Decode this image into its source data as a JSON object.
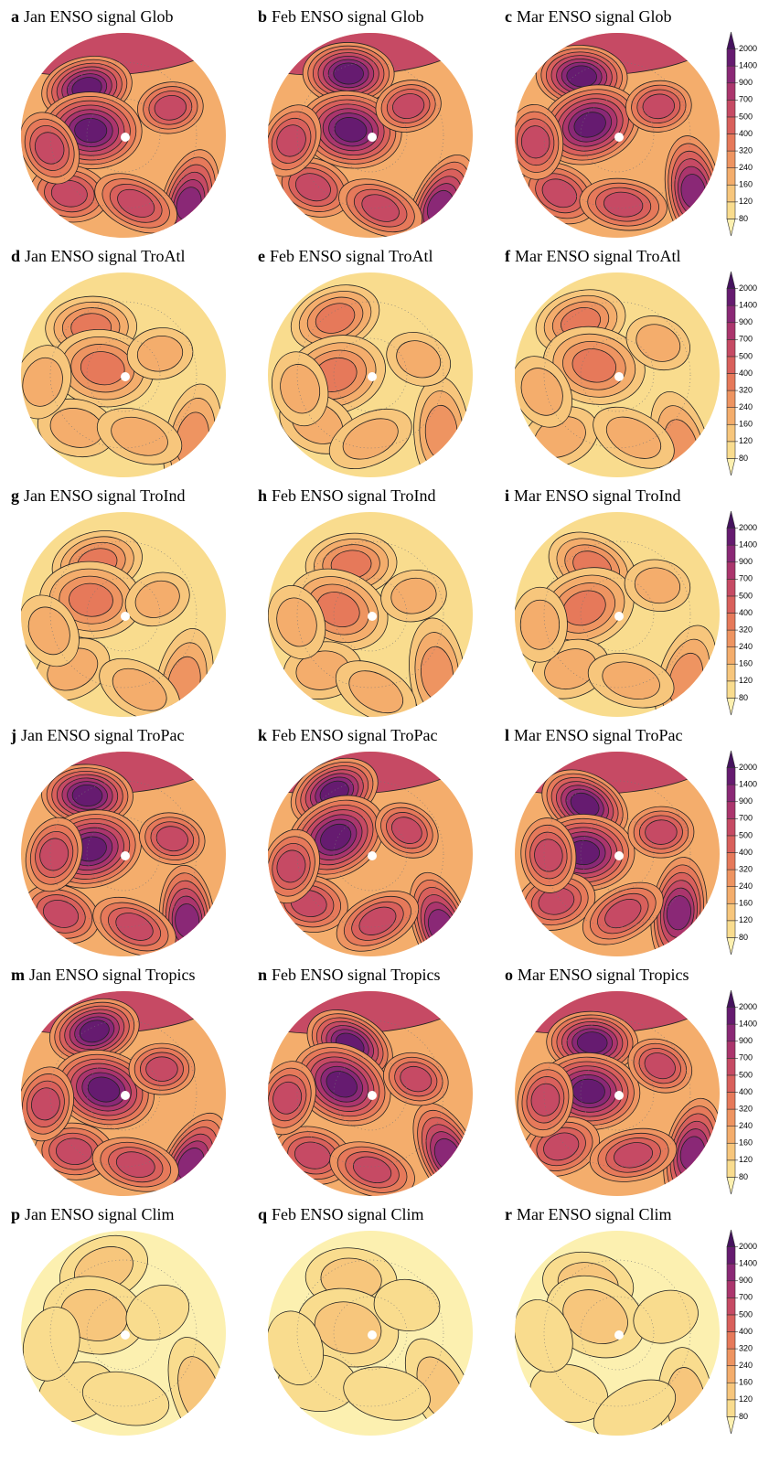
{
  "panels": [
    {
      "letter": "a",
      "title": "Jan ENSO signal Glob"
    },
    {
      "letter": "b",
      "title": "Feb ENSO signal Glob"
    },
    {
      "letter": "c",
      "title": "Mar ENSO signal Glob"
    },
    {
      "letter": "d",
      "title": "Jan ENSO signal TroAtl"
    },
    {
      "letter": "e",
      "title": "Feb ENSO signal TroAtl"
    },
    {
      "letter": "f",
      "title": "Mar ENSO signal TroAtl"
    },
    {
      "letter": "g",
      "title": "Jan ENSO signal TroInd"
    },
    {
      "letter": "h",
      "title": "Feb ENSO signal TroInd"
    },
    {
      "letter": "i",
      "title": "Mar ENSO signal TroInd"
    },
    {
      "letter": "j",
      "title": "Jan ENSO signal TroPac"
    },
    {
      "letter": "k",
      "title": "Feb ENSO signal TroPac"
    },
    {
      "letter": "l",
      "title": "Mar ENSO signal TroPac"
    },
    {
      "letter": "m",
      "title": "Jan ENSO signal Tropics"
    },
    {
      "letter": "n",
      "title": "Feb ENSO signal Tropics"
    },
    {
      "letter": "o",
      "title": "Mar ENSO signal Tropics"
    },
    {
      "letter": "p",
      "title": "Jan ENSO signal Clim"
    },
    {
      "letter": "q",
      "title": "Feb ENSO signal Clim"
    },
    {
      "letter": "r",
      "title": "Mar ENSO signal Clim"
    }
  ],
  "colorbar": {
    "ticks": [
      80,
      120,
      160,
      240,
      320,
      400,
      500,
      700,
      900,
      1400,
      2000
    ],
    "colors": [
      "#fcf0b0",
      "#f9dc8e",
      "#f7c67c",
      "#f4ad6c",
      "#ee9461",
      "#e6795a",
      "#d9605c",
      "#c64a64",
      "#ab356d",
      "#8a2876",
      "#661b70",
      "#45135e"
    ]
  }
}
